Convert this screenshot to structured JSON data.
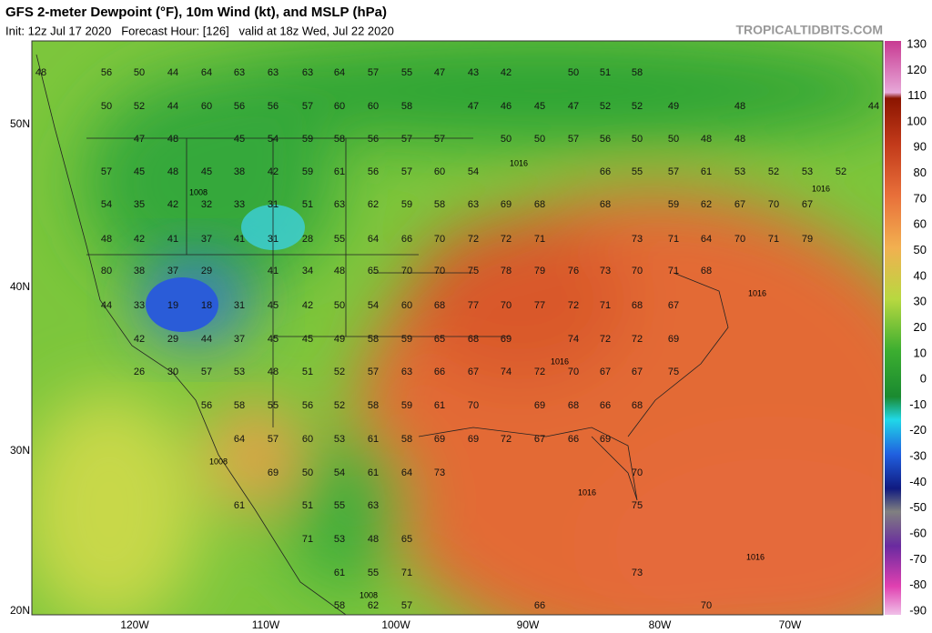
{
  "header": {
    "title": "GFS 2-meter Dewpoint (°F), 10m Wind (kt), and MSLP (hPa)",
    "subtitle": "Init: 12z Jul 17 2020   Forecast Hour: [126]   valid at 18z Wed, Jul 22 2020",
    "site": "TROPICALTIDBITS.COM"
  },
  "colorbar": {
    "labels": [
      "130",
      "120",
      "110",
      "100",
      "90",
      "80",
      "70",
      "60",
      "50",
      "40",
      "30",
      "20",
      "10",
      "0",
      "-10",
      "-20",
      "-30",
      "-40",
      "-50",
      "-60",
      "-70",
      "-80",
      "-90"
    ]
  },
  "latitude_labels": [
    "50N",
    "40N",
    "30N",
    "20N"
  ],
  "longitude_labels": [
    "120W",
    "110W",
    "100W",
    "90W",
    "80W",
    "70W"
  ],
  "isobar_labels": [
    "1016",
    "1016",
    "1016",
    "1016",
    "1016",
    "1016",
    "1008",
    "1008",
    "1008"
  ],
  "dewpoint_labels": [
    [
      "48",
      "56",
      "50",
      "44",
      "64",
      "63",
      "63",
      "63",
      "64",
      "57",
      "55",
      "47",
      "43",
      "42",
      "50",
      "51",
      "58"
    ],
    [
      "50",
      "52",
      "44",
      "60",
      "56",
      "56",
      "57",
      "60",
      "60",
      "58",
      "47",
      "46",
      "45",
      "47",
      "52",
      "52",
      "49",
      "48",
      "44"
    ],
    [
      "47",
      "48",
      "45",
      "54",
      "59",
      "58",
      "56",
      "57",
      "57",
      "50",
      "50",
      "57",
      "56",
      "50",
      "50",
      "48",
      "48"
    ],
    [
      "57",
      "45",
      "48",
      "45",
      "38",
      "42",
      "59",
      "61",
      "56",
      "57",
      "60",
      "54",
      "66",
      "55",
      "57",
      "61",
      "53",
      "52",
      "53",
      "52"
    ],
    [
      "54",
      "35",
      "42",
      "32",
      "33",
      "31",
      "51",
      "63",
      "62",
      "59",
      "58",
      "63",
      "69",
      "68",
      "68",
      "59",
      "62",
      "67",
      "70",
      "67"
    ],
    [
      "48",
      "42",
      "41",
      "37",
      "41",
      "31",
      "28",
      "55",
      "64",
      "66",
      "70",
      "72",
      "72",
      "71",
      "73",
      "71",
      "64",
      "70",
      "71",
      "79"
    ],
    [
      "80",
      "38",
      "37",
      "29",
      "41",
      "34",
      "48",
      "65",
      "70",
      "70",
      "75",
      "78",
      "79",
      "76",
      "73",
      "70",
      "71",
      "68"
    ],
    [
      "44",
      "33",
      "19",
      "18",
      "31",
      "45",
      "42",
      "50",
      "54",
      "60",
      "68",
      "77",
      "70",
      "77",
      "72",
      "71",
      "68",
      "67"
    ],
    [
      "42",
      "29",
      "44",
      "37",
      "45",
      "45",
      "49",
      "58",
      "59",
      "65",
      "68",
      "69",
      "74",
      "72",
      "72",
      "69"
    ],
    [
      "26",
      "30",
      "57",
      "53",
      "48",
      "51",
      "52",
      "57",
      "63",
      "66",
      "67",
      "74",
      "72",
      "70",
      "67",
      "67",
      "75"
    ],
    [
      "56",
      "58",
      "55",
      "56",
      "52",
      "58",
      "59",
      "61",
      "70",
      "69",
      "68",
      "66",
      "68"
    ],
    [
      "64",
      "57",
      "60",
      "53",
      "61",
      "58",
      "69",
      "69",
      "72",
      "67",
      "66",
      "69"
    ],
    [
      "69",
      "50",
      "54",
      "61",
      "64",
      "73",
      "70"
    ],
    [
      "61",
      "51",
      "55",
      "63",
      "75"
    ],
    [
      "71",
      "53",
      "48",
      "65"
    ],
    [
      "61",
      "55",
      "71",
      "73"
    ],
    [
      "58",
      "62",
      "57",
      "66",
      "70"
    ]
  ]
}
